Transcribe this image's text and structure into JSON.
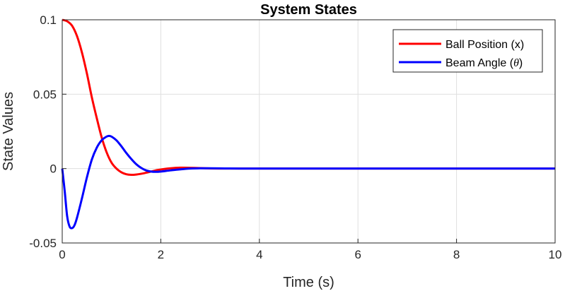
{
  "chart_data": {
    "type": "line",
    "title": "System States",
    "xlabel": "Time (s)",
    "ylabel": "State Values",
    "xlim": [
      0,
      10
    ],
    "ylim": [
      -0.05,
      0.1
    ],
    "xticks": [
      0,
      2,
      4,
      6,
      8,
      10
    ],
    "xtick_labels": [
      "0",
      "2",
      "4",
      "6",
      "8",
      "10"
    ],
    "yticks": [
      -0.05,
      0,
      0.05,
      0.1
    ],
    "ytick_labels": [
      "-0.05",
      "0",
      "0.05",
      "0.1"
    ],
    "grid": true,
    "legend_position": "top-right",
    "series": [
      {
        "name": "Ball Position (x)",
        "legend_prefix": "Ball Position (x)",
        "legend_symbol": "",
        "legend_suffix": "",
        "color": "#ff0000",
        "x": [
          0,
          0.1,
          0.2,
          0.3,
          0.4,
          0.5,
          0.6,
          0.7,
          0.8,
          0.9,
          1.0,
          1.1,
          1.2,
          1.3,
          1.4,
          1.5,
          1.6,
          1.7,
          1.8,
          1.9,
          2.0,
          2.2,
          2.4,
          2.6,
          2.8,
          3.0,
          3.3,
          3.6,
          4.0,
          5.0,
          6.0,
          8.0,
          10.0
        ],
        "y": [
          0.1,
          0.099,
          0.096,
          0.089,
          0.078,
          0.064,
          0.048,
          0.034,
          0.021,
          0.011,
          0.004,
          0.0,
          -0.0025,
          -0.0038,
          -0.0042,
          -0.004,
          -0.0035,
          -0.0028,
          -0.002,
          -0.0012,
          -0.0006,
          0.0002,
          0.0006,
          0.0005,
          0.0003,
          0.0001,
          0.0,
          0.0,
          0.0,
          0.0,
          0.0,
          0.0,
          0.0
        ]
      },
      {
        "name": "Beam Angle (θ)",
        "legend_prefix": "Beam Angle (",
        "legend_symbol": "θ",
        "legend_suffix": ")",
        "color": "#0000ff",
        "x": [
          0,
          0.05,
          0.1,
          0.15,
          0.2,
          0.25,
          0.3,
          0.4,
          0.5,
          0.6,
          0.7,
          0.8,
          0.9,
          0.95,
          1.0,
          1.1,
          1.2,
          1.3,
          1.4,
          1.5,
          1.6,
          1.7,
          1.8,
          1.9,
          2.0,
          2.2,
          2.4,
          2.6,
          2.8,
          3.0,
          3.3,
          3.6,
          4.0,
          5.0,
          6.0,
          8.0,
          10.0
        ],
        "y": [
          0.0,
          -0.015,
          -0.032,
          -0.039,
          -0.04,
          -0.038,
          -0.033,
          -0.02,
          -0.006,
          0.006,
          0.014,
          0.019,
          0.0215,
          0.022,
          0.0215,
          0.019,
          0.015,
          0.0105,
          0.0065,
          0.003,
          0.0005,
          -0.0012,
          -0.002,
          -0.0022,
          -0.002,
          -0.0012,
          -0.0005,
          0.0,
          0.0002,
          0.0002,
          0.0001,
          0.0,
          0.0,
          0.0,
          0.0,
          0.0,
          0.0
        ]
      }
    ]
  }
}
